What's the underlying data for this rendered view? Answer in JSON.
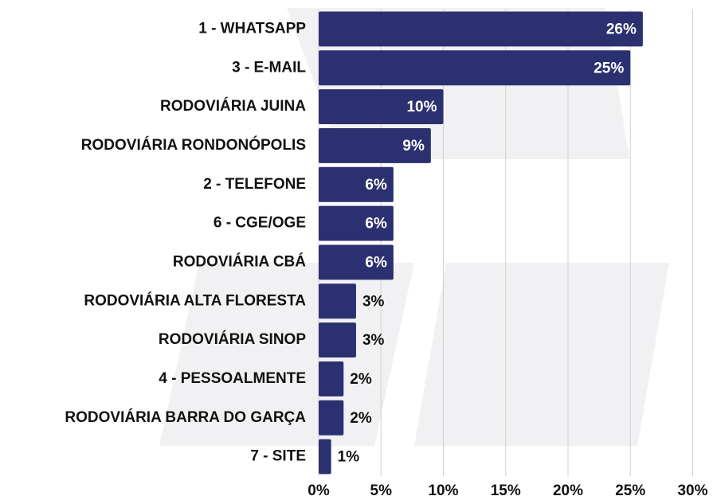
{
  "chart_data": {
    "type": "bar",
    "orientation": "horizontal",
    "categories": [
      "1 - WHATSAPP",
      "3 - E-MAIL",
      "RODOVIÁRIA JUINA",
      "RODOVIÁRIA RONDONÓPOLIS",
      "2 - TELEFONE",
      "6 - CGE/OGE",
      "RODOVIÁRIA CBÁ",
      "RODOVIÁRIA ALTA FLORESTA",
      "RODOVIÁRIA SINOP",
      "4 - PESSOALMENTE",
      "RODOVIÁRIA BARRA DO GARÇA",
      "7 - SITE"
    ],
    "values": [
      26,
      25,
      10,
      9,
      6,
      6,
      6,
      3,
      3,
      2,
      2,
      1
    ],
    "value_labels": [
      "26%",
      "25%",
      "10%",
      "9%",
      "6%",
      "6%",
      "6%",
      "3%",
      "3%",
      "2%",
      "2%",
      "1%"
    ],
    "color": "#2b3170",
    "xlim": [
      0,
      30
    ],
    "xticks": [
      {
        "value": 0,
        "label": "0%"
      },
      {
        "value": 5,
        "label": "5%"
      },
      {
        "value": 10,
        "label": "10%"
      },
      {
        "value": 15,
        "label": "15%"
      },
      {
        "value": 20,
        "label": "20%"
      },
      {
        "value": 25,
        "label": "25%"
      },
      {
        "value": 30,
        "label": "30%"
      }
    ],
    "grid": true
  }
}
